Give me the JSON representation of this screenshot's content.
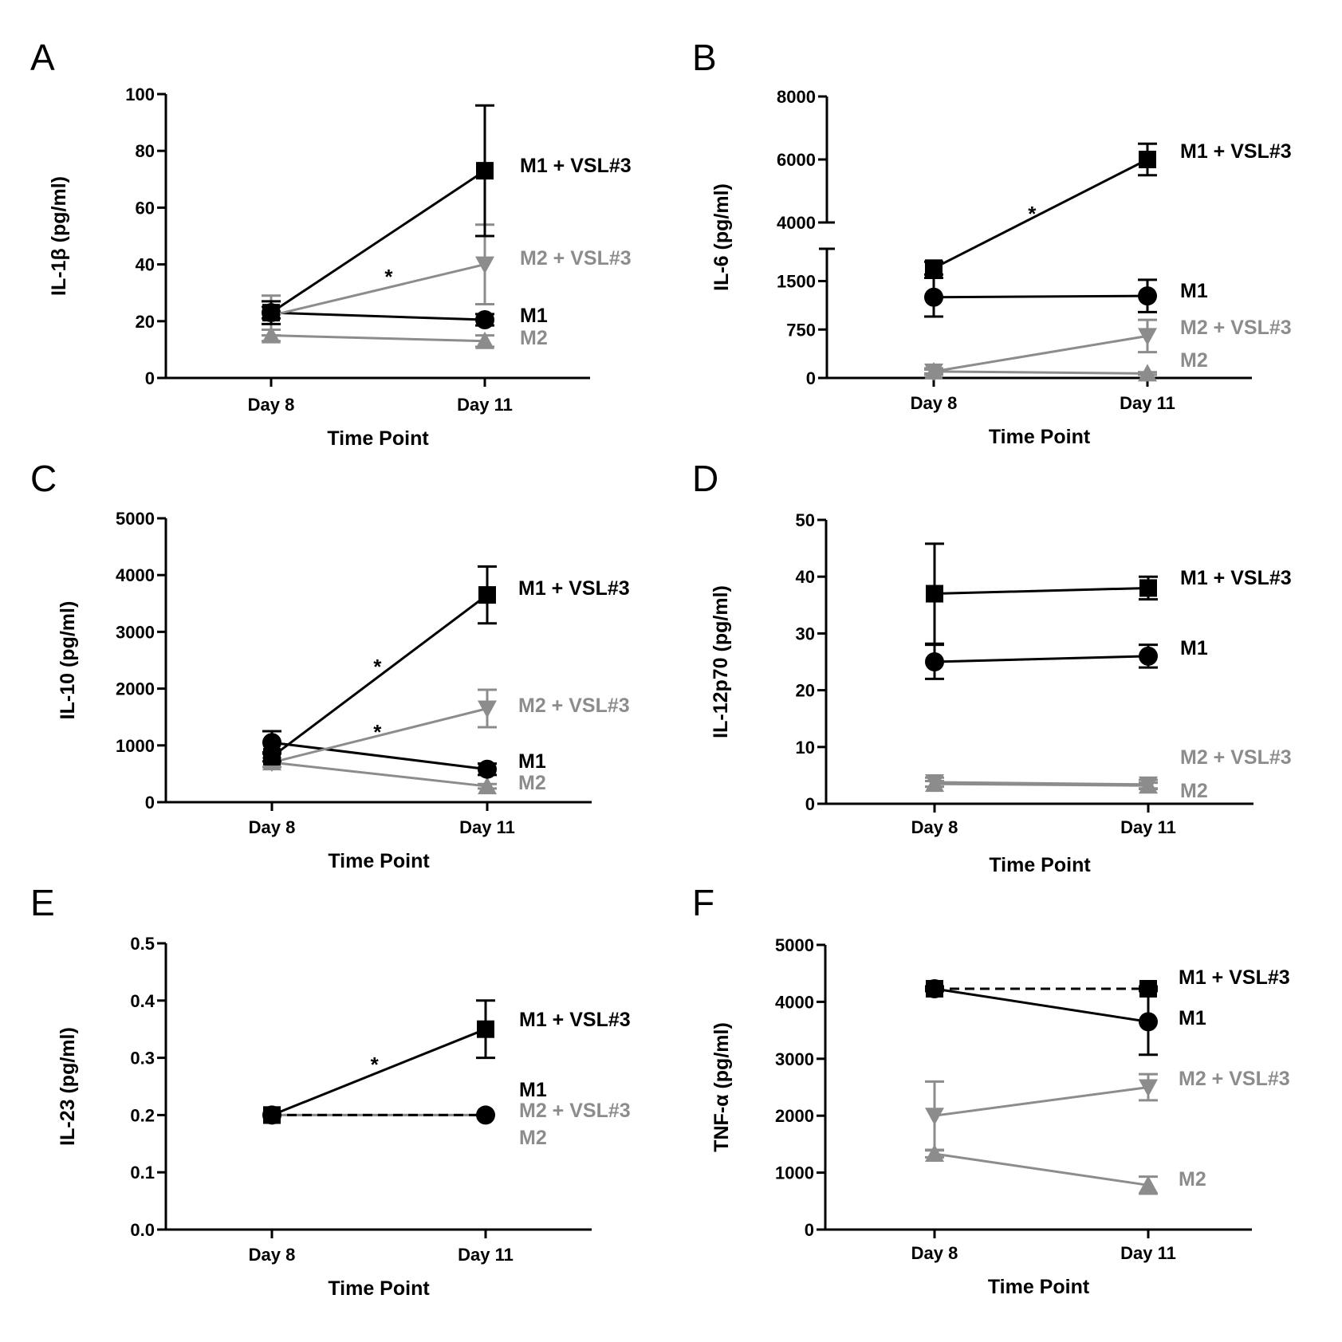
{
  "colors": {
    "black": "#000000",
    "gray": "#8c8c8c"
  },
  "chart_data": [
    {
      "panel": "A",
      "type": "line",
      "x": [
        "Day 8",
        "Day 11"
      ],
      "xlabel": "Time Point",
      "ylabel": "IL-1β (pg/ml)",
      "ylim": [
        0,
        100
      ],
      "yticks": [
        "0",
        "20",
        "40",
        "60",
        "80",
        "100"
      ],
      "series": [
        {
          "name": "M1 + VSL#3",
          "color": "black",
          "marker": "square",
          "values": [
            23,
            73
          ],
          "errors": [
            4,
            23
          ]
        },
        {
          "name": "M2 + VSL#3",
          "color": "gray",
          "marker": "triangle-down",
          "values": [
            22,
            40
          ],
          "errors": [
            7,
            14
          ]
        },
        {
          "name": "M1",
          "color": "black",
          "marker": "circle",
          "values": [
            23,
            20.5
          ],
          "errors": [
            2,
            2
          ]
        },
        {
          "name": "M2",
          "color": "gray",
          "marker": "triangle-up",
          "values": [
            15,
            13
          ],
          "errors": [
            2,
            2
          ]
        }
      ],
      "annotations": [
        {
          "text": "*",
          "x": 0.55,
          "y": 36
        }
      ]
    },
    {
      "panel": "B",
      "type": "line",
      "x": [
        "Day 8",
        "Day 11"
      ],
      "xlabel": "Time Point",
      "ylabel": "IL-6 (pg/ml)",
      "ylim": [
        0,
        8000
      ],
      "yticks": [
        "0",
        "750",
        "1500",
        "4000",
        "6000",
        "8000"
      ],
      "axis_break": [
        2000,
        4000
      ],
      "series": [
        {
          "name": "M1 + VSL#3",
          "color": "black",
          "marker": "square",
          "values": [
            1700,
            6000
          ],
          "errors": [
            100,
            500
          ]
        },
        {
          "name": "M1",
          "color": "black",
          "marker": "circle",
          "values": [
            1250,
            1270
          ],
          "errors": [
            300,
            250
          ]
        },
        {
          "name": "M2 + VSL#3",
          "color": "gray",
          "marker": "triangle-down",
          "values": [
            100,
            650
          ],
          "errors": [
            50,
            250
          ]
        },
        {
          "name": "M2",
          "color": "gray",
          "marker": "triangle-up",
          "values": [
            100,
            70
          ],
          "errors": [
            30,
            20
          ]
        }
      ],
      "annotations": [
        {
          "text": "*",
          "x": 0.46,
          "y": 4300
        }
      ]
    },
    {
      "panel": "C",
      "type": "line",
      "x": [
        "Day 8",
        "Day 11"
      ],
      "xlabel": "Time Point",
      "ylabel": "IL-10 (pg/ml)",
      "ylim": [
        0,
        5000
      ],
      "yticks": [
        "0",
        "1000",
        "2000",
        "3000",
        "4000",
        "5000"
      ],
      "series": [
        {
          "name": "M1 + VSL#3",
          "color": "black",
          "marker": "square",
          "values": [
            800,
            3650
          ],
          "errors": [
            80,
            500
          ]
        },
        {
          "name": "M2 + VSL#3",
          "color": "gray",
          "marker": "triangle-down",
          "values": [
            700,
            1650
          ],
          "errors": [
            80,
            330
          ]
        },
        {
          "name": "M1",
          "color": "black",
          "marker": "circle",
          "values": [
            1050,
            580
          ],
          "errors": [
            200,
            100
          ]
        },
        {
          "name": "M2",
          "color": "gray",
          "marker": "triangle-up",
          "values": [
            700,
            280
          ],
          "errors": [
            80,
            40
          ]
        }
      ],
      "annotations": [
        {
          "text": "*",
          "x": 0.49,
          "y": 2400
        },
        {
          "text": "*",
          "x": 0.49,
          "y": 1250
        }
      ]
    },
    {
      "panel": "D",
      "type": "line",
      "x": [
        "Day 8",
        "Day 11"
      ],
      "xlabel": "Time Point",
      "ylabel": "IL-12p70 (pg/ml)",
      "ylim": [
        0,
        50
      ],
      "yticks": [
        "0",
        "10",
        "20",
        "30",
        "40",
        "50"
      ],
      "series": [
        {
          "name": "M1 + VSL#3",
          "color": "black",
          "marker": "square",
          "values": [
            37,
            38
          ],
          "errors": [
            8.8,
            2
          ]
        },
        {
          "name": "M1",
          "color": "black",
          "marker": "circle",
          "values": [
            25,
            26
          ],
          "errors": [
            3,
            2
          ]
        },
        {
          "name": "M2 + VSL#3",
          "color": "gray",
          "marker": "triangle-down",
          "values": [
            3.8,
            3.4
          ],
          "errors": [
            0.8,
            0.8
          ]
        },
        {
          "name": "M2",
          "color": "gray",
          "marker": "triangle-up",
          "values": [
            3.5,
            3.2
          ],
          "errors": [
            0.5,
            0.5
          ]
        }
      ],
      "annotations": []
    },
    {
      "panel": "E",
      "type": "line",
      "x": [
        "Day 8",
        "Day 11"
      ],
      "xlabel": "Time Point",
      "ylabel": "IL-23 (pg/ml)",
      "ylim": [
        0,
        0.5
      ],
      "yticks": [
        "0.0",
        "0.1",
        "0.2",
        "0.3",
        "0.4",
        "0.5"
      ],
      "series": [
        {
          "name": "M1 + VSL#3",
          "color": "black",
          "marker": "square",
          "values": [
            0.2,
            0.35
          ],
          "errors": [
            0,
            0.05
          ]
        },
        {
          "name": "M1",
          "color": "black",
          "marker": "circle",
          "values": [
            0.2,
            0.2
          ],
          "errors": [
            0,
            0
          ],
          "dashed": true
        },
        {
          "name": "M2 + VSL#3",
          "color": "gray",
          "marker": "none",
          "values": [
            0.2,
            0.2
          ],
          "errors": [
            0,
            0
          ]
        },
        {
          "name": "M2",
          "color": "gray",
          "marker": "none",
          "values": [
            0.2,
            0.2
          ],
          "errors": [
            0,
            0
          ]
        }
      ],
      "annotations": [
        {
          "text": "*",
          "x": 0.48,
          "y": 0.29
        }
      ]
    },
    {
      "panel": "F",
      "type": "line",
      "x": [
        "Day 8",
        "Day 11"
      ],
      "xlabel": "Time Point",
      "ylabel": "TNF-α (pg/ml)",
      "ylim": [
        0,
        5000
      ],
      "yticks": [
        "0",
        "1000",
        "2000",
        "3000",
        "4000",
        "5000"
      ],
      "series": [
        {
          "name": "M1 + VSL#3",
          "color": "black",
          "marker": "square",
          "values": [
            4230,
            4230
          ],
          "errors": [
            40,
            40
          ],
          "dashed": true
        },
        {
          "name": "M1",
          "color": "black",
          "marker": "circle",
          "values": [
            4230,
            3650
          ],
          "errors": [
            40,
            580
          ]
        },
        {
          "name": "M2 + VSL#3",
          "color": "gray",
          "marker": "triangle-down",
          "values": [
            2000,
            2500
          ],
          "errors": [
            600,
            230
          ]
        },
        {
          "name": "M2",
          "color": "gray",
          "marker": "triangle-up",
          "values": [
            1330,
            780
          ],
          "errors": [
            60,
            150
          ]
        }
      ],
      "annotations": []
    }
  ]
}
